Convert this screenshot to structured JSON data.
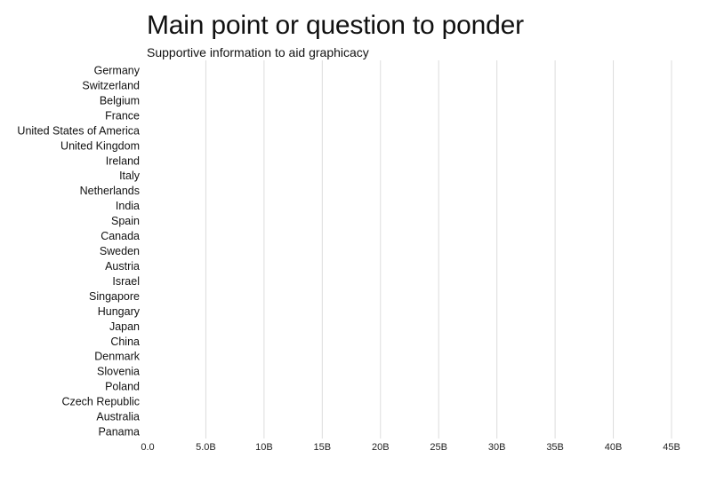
{
  "chart_data": {
    "type": "bar",
    "title": "Main point or question to ponder",
    "subtitle": "Supportive information to aid graphicacy",
    "orientation": "horizontal",
    "categories": [
      "Germany",
      "Switzerland",
      "Belgium",
      "France",
      "United States of America",
      "United Kingdom",
      "Ireland",
      "Italy",
      "Netherlands",
      "India",
      "Spain",
      "Canada",
      "Sweden",
      "Austria",
      "Israel",
      "Singapore",
      "Hungary",
      "Japan",
      "China",
      "Denmark",
      "Slovenia",
      "Poland",
      "Czech Republic",
      "Australia",
      "Panama"
    ],
    "values": [
      0,
      0,
      0,
      0,
      0,
      0,
      0,
      0,
      0,
      0,
      0,
      0,
      0,
      0,
      0,
      0,
      0,
      0,
      0,
      0,
      0,
      0,
      0,
      0,
      0
    ],
    "xlim": [
      0,
      45
    ],
    "xticks": [
      0,
      5,
      10,
      15,
      20,
      25,
      30,
      35,
      40,
      45
    ],
    "xtick_labels": [
      "0.0",
      "5.0B",
      "10B",
      "15B",
      "20B",
      "25B",
      "30B",
      "35B",
      "40B",
      "45B"
    ],
    "grid": true,
    "bar_color": "#4a78c2"
  }
}
